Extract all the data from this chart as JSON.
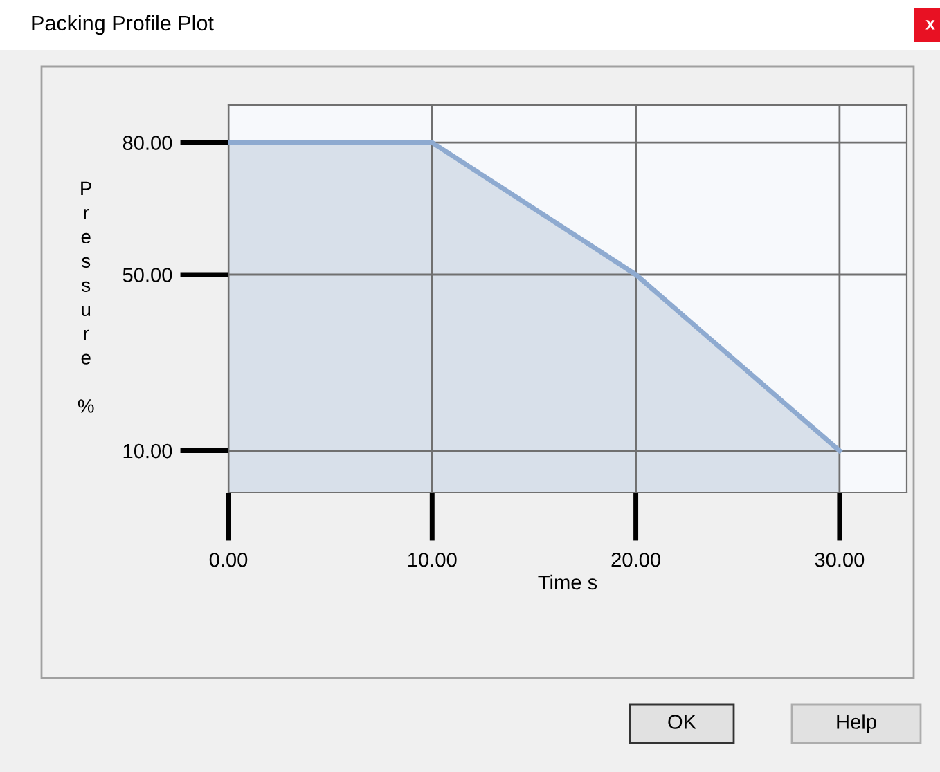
{
  "chart_data": {
    "type": "area",
    "title": "Packing Profile Plot",
    "xlabel": "Time s",
    "ylabel": "Pressure %",
    "x": [
      0,
      10,
      20,
      30
    ],
    "series": [
      {
        "color": "#8eaad0",
        "values": [
          80,
          80,
          50,
          10
        ]
      }
    ],
    "xlim": [
      0,
      33.3
    ],
    "ylim": [
      0.5,
      88.5
    ],
    "xticks": [
      {
        "value": 0,
        "label": "0.00"
      },
      {
        "value": 10,
        "label": "10.00"
      },
      {
        "value": 20,
        "label": "20.00"
      },
      {
        "value": 30,
        "label": "30.00"
      }
    ],
    "yticks": [
      {
        "value": 10,
        "label": "10.00"
      },
      {
        "value": 50,
        "label": "50.00"
      },
      {
        "value": 80,
        "label": "80.00"
      }
    ],
    "grid": true,
    "annotations": [
      "OK",
      "Help",
      "x"
    ]
  }
}
